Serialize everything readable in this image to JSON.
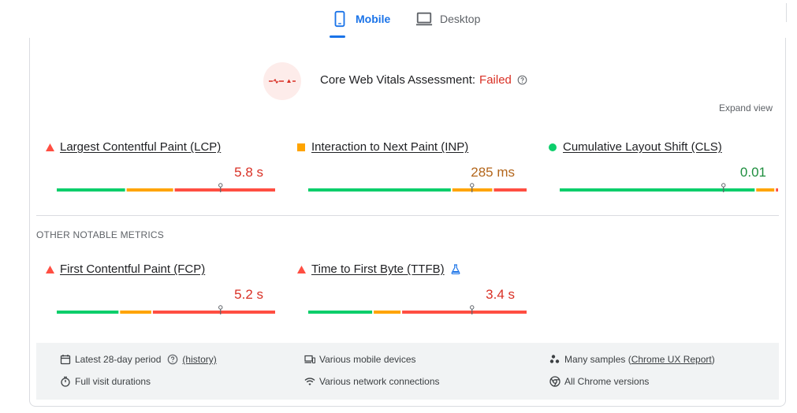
{
  "tabs": {
    "mobile_label": "Mobile",
    "desktop_label": "Desktop"
  },
  "cwv": {
    "title": "Core Web Vitals Assessment:",
    "status": "Failed",
    "expand_label": "Expand view"
  },
  "colors": {
    "accent": "#1a73e8",
    "good": "#1e8e3e",
    "needs_improvement": "#f29900",
    "poor": "#d93025",
    "bar_good": "#0cce6b",
    "bar_ni": "#ffa400",
    "bar_poor": "#ff4e42"
  },
  "metrics": [
    {
      "id": "lcp",
      "label": "Largest Contentful Paint (LCP)",
      "value": "5.8 s",
      "rating": "poor",
      "marker_fraction": 0.75,
      "segments": [
        0.32,
        0.22,
        0.46
      ]
    },
    {
      "id": "inp",
      "label": "Interaction to Next Paint (INP)",
      "value": "285 ms",
      "rating": "needs_improvement",
      "marker_fraction": 0.75,
      "segments": [
        0.66,
        0.19,
        0.15
      ]
    },
    {
      "id": "cls",
      "label": "Cumulative Layout Shift (CLS)",
      "value": "0.01",
      "rating": "good",
      "marker_fraction": 0.75,
      "segments": [
        0.9,
        0.09,
        0.01
      ]
    }
  ],
  "other": {
    "heading": "OTHER NOTABLE METRICS",
    "metrics": [
      {
        "id": "fcp",
        "label": "First Contentful Paint (FCP)",
        "value": "5.2 s",
        "rating": "poor",
        "marker_fraction": 0.75,
        "segments": [
          0.29,
          0.15,
          0.56
        ]
      },
      {
        "id": "ttfb",
        "label": "Time to First Byte (TTFB)",
        "value": "3.4 s",
        "rating": "poor",
        "marker_fraction": 0.75,
        "experimental_icon": "flask-icon",
        "segments": [
          0.3,
          0.13,
          0.57
        ]
      }
    ]
  },
  "info": {
    "period": "Latest 28-day period",
    "history_link": "(history)",
    "durations": "Full visit durations",
    "devices": "Various mobile devices",
    "network": "Various network connections",
    "samples_prefix": "Many samples (",
    "samples_link": "Chrome UX Report",
    "samples_suffix": ")",
    "versions": "All Chrome versions"
  }
}
